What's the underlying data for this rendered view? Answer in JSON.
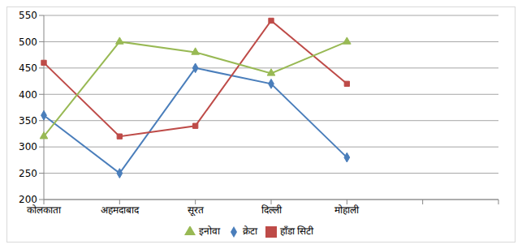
{
  "chart_data": {
    "type": "line",
    "categories": [
      "कोलकाता",
      "अहमदाबाद",
      "सूरत",
      "दिल्ली",
      "मोहाली",
      null,
      null
    ],
    "series": [
      {
        "name": "क्रेटा",
        "color": "#4a7ebb",
        "marker": "diamond",
        "values": [
          360,
          250,
          450,
          420,
          280,
          null,
          null
        ]
      },
      {
        "name": "हॉंडा सिटी",
        "color": "#be4b48",
        "marker": "square",
        "values": [
          460,
          320,
          340,
          540,
          420,
          null,
          null
        ]
      },
      {
        "name": "इनोवा",
        "color": "#98b954",
        "marker": "triangle",
        "values": [
          320,
          500,
          480,
          440,
          500,
          null,
          null
        ]
      }
    ],
    "ylim": [
      200,
      550
    ],
    "yticks": [
      200,
      250,
      300,
      350,
      400,
      450,
      500,
      550
    ],
    "grid": true,
    "legend": "bottom"
  }
}
